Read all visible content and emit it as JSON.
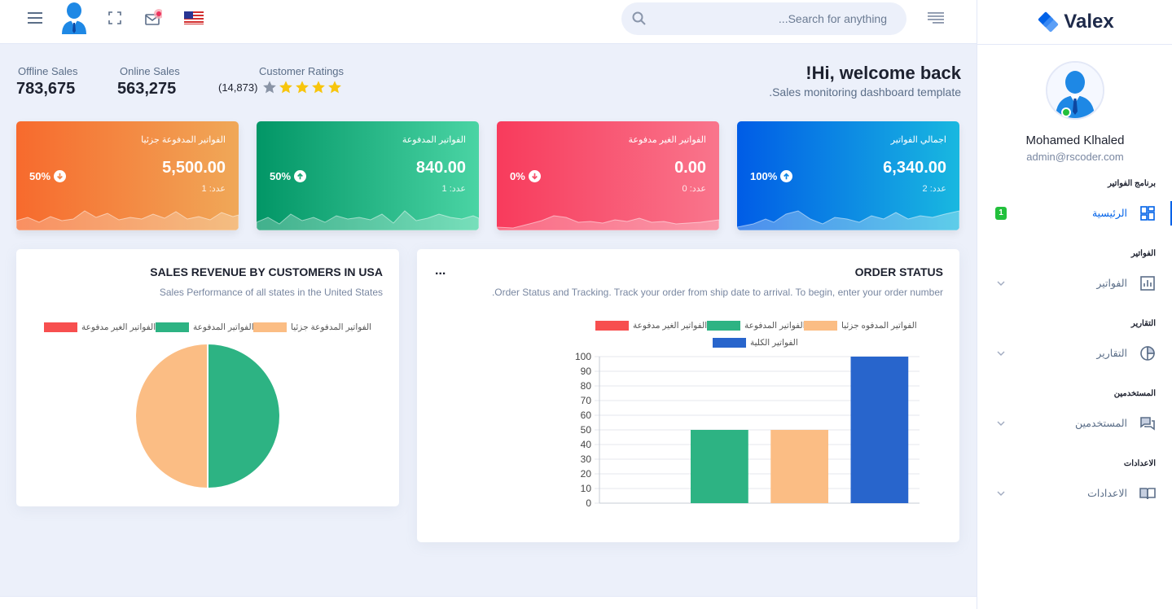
{
  "header": {
    "search_placeholder": "...Search for anything"
  },
  "sidebar": {
    "brand": "Valex",
    "user_name": "Mohamed Klhaled",
    "user_email": "admin@rscoder.com",
    "sections": [
      {
        "category": "برنامج الفواتير",
        "item": "الرئيسية",
        "icon": "dashboard-icon",
        "active": true,
        "badge": "1"
      },
      {
        "category": "الفواتير",
        "item": "الفواتير",
        "icon": "bar-chart-icon",
        "active": false
      },
      {
        "category": "التقارير",
        "item": "التقارير",
        "icon": "pie-chart-icon",
        "active": false
      },
      {
        "category": "المستخدمين",
        "item": "المستخدمين",
        "icon": "chat-icon",
        "active": false
      },
      {
        "category": "الاعدادات",
        "item": "الاعدادات",
        "icon": "book-icon",
        "active": false
      }
    ]
  },
  "welcome": {
    "title": "!Hi, welcome back",
    "subtitle": ".Sales monitoring dashboard template"
  },
  "stats": {
    "offline_label": "Offline Sales",
    "offline_value": "783,675",
    "online_label": "Online Sales",
    "online_value": "563,275",
    "ratings_label": "Customer Ratings",
    "ratings_count": "(14,873)",
    "ratings_stars": 4
  },
  "cards": [
    {
      "title": "الفواتير المدفوعة جزئيا",
      "value": "5,500.00",
      "count": "عدد: 1",
      "percent": "50%",
      "direction": "down",
      "color": "orange"
    },
    {
      "title": "الفواتير المدفوعة",
      "value": "840.00",
      "count": "عدد: 1",
      "percent": "50%",
      "direction": "up",
      "color": "green"
    },
    {
      "title": "الفواتير الغير مدفوعة",
      "value": "0.00",
      "count": "عدد: 0",
      "percent": "0%",
      "direction": "down",
      "color": "red"
    },
    {
      "title": "اجمالي الفواتير",
      "value": "6,340.00",
      "count": "عدد: 2",
      "percent": "100%",
      "direction": "up",
      "color": "blue"
    }
  ],
  "pie_panel": {
    "title": "SALES REVENUE BY CUSTOMERS IN USA",
    "subtitle": "Sales Performance of all states in the United States"
  },
  "bar_panel": {
    "title": "ORDER STATUS",
    "menu": "...",
    "subtitle": ".Order Status and Tracking. Track your order from ship date to arrival. To begin, enter your order number"
  },
  "chart_data": [
    {
      "type": "pie",
      "title": "",
      "legend": [
        "الفواتير الغير مدفوعة",
        "الفواتير المدفوعة",
        "الفواتير المدفوعة جزئيا"
      ],
      "colors": [
        "#f74f4f",
        "#2db383",
        "#fbbd84"
      ],
      "values": [
        0,
        50,
        50
      ],
      "legend_position": "top"
    },
    {
      "type": "bar",
      "title": "",
      "legend": [
        "الفواتير الغير مدفوعة",
        "الفواتير المدفوعة",
        "الفواتير المدفوه جزئيا",
        "الفواتير الكلية"
      ],
      "colors": [
        "#f74f4f",
        "#2db383",
        "#fbbd84",
        "#2865cc"
      ],
      "values": [
        0,
        50,
        50,
        100
      ],
      "ylim": [
        0,
        100
      ],
      "yticks": [
        0,
        10,
        20,
        30,
        40,
        50,
        60,
        70,
        80,
        90,
        100
      ],
      "grid": true,
      "legend_position": "top"
    }
  ],
  "colors": {
    "accent": "#0162e8",
    "success": "#22c03c",
    "star_on": "#f7c50d",
    "star_off": "#8a94a6"
  }
}
